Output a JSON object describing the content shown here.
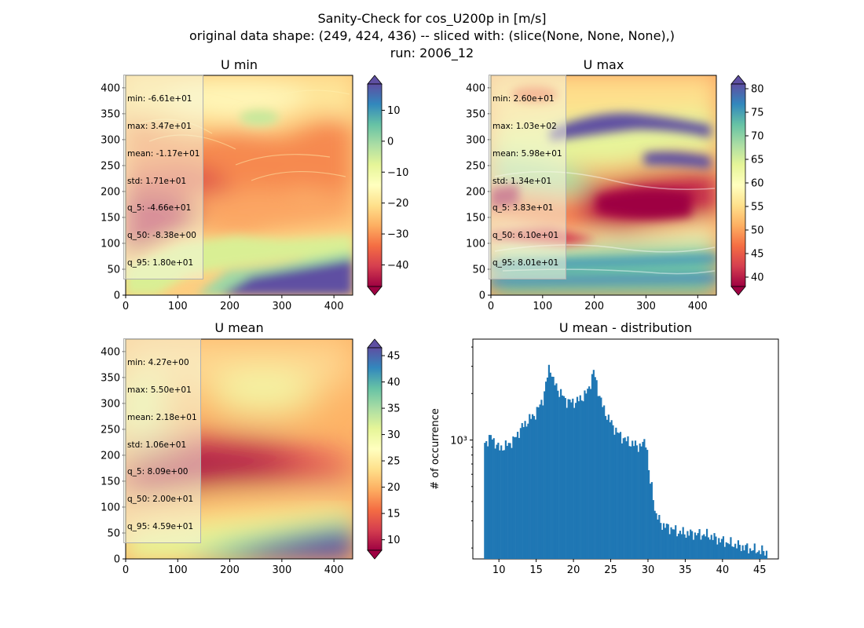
{
  "figure": {
    "title_line1": "Sanity-Check for cos_U200p in [m/s]",
    "title_line2": "original data shape: (249, 424, 436) -- sliced with: (slice(None, None, None),)",
    "title_line3": "run: 2006_12"
  },
  "colormap": "Spectral",
  "panels": {
    "umin": {
      "title": "U min",
      "stats": [
        "min: -6.61e+01",
        "max: 3.47e+01",
        "mean: -1.17e+01",
        "std: 1.71e+01",
        "q_5: -4.66e+01",
        "q_50: -8.38e+00",
        "q_95: 1.80e+01"
      ],
      "colorbar": {
        "min": -47,
        "max": 18.5,
        "ticks": [
          "10",
          "0",
          "−10",
          "−20",
          "−30",
          "−40"
        ]
      }
    },
    "umax": {
      "title": "U max",
      "stats": [
        "min: 2.60e+01",
        "max: 1.03e+02",
        "mean: 5.98e+01",
        "std: 1.34e+01",
        "q_5: 3.83e+01",
        "q_50: 6.10e+01",
        "q_95: 8.01e+01"
      ],
      "colorbar": {
        "min": 38,
        "max": 81,
        "ticks": [
          "80",
          "75",
          "70",
          "65",
          "60",
          "55",
          "50",
          "45",
          "40"
        ]
      }
    },
    "umean": {
      "title": "U mean",
      "stats": [
        "min: 4.27e+00",
        "max: 5.50e+01",
        "mean: 2.18e+01",
        "std: 1.06e+01",
        "q_5: 8.09e+00",
        "q_50: 2.00e+01",
        "q_95: 4.59e+01"
      ],
      "colorbar": {
        "min": 8,
        "max": 46.5,
        "ticks": [
          "45",
          "40",
          "35",
          "30",
          "25",
          "20",
          "15",
          "10"
        ]
      }
    },
    "dist": {
      "title": "U mean - distribution",
      "ylabel": "# of occurrence"
    }
  },
  "map_axes": {
    "x_ticks": [
      "0",
      "100",
      "200",
      "300",
      "400"
    ],
    "y_ticks": [
      "0",
      "50",
      "100",
      "150",
      "200",
      "250",
      "300",
      "350",
      "400"
    ]
  },
  "chart_data": [
    {
      "type": "heatmap",
      "title": "U min",
      "xlim": [
        0,
        436
      ],
      "ylim": [
        0,
        424
      ],
      "colorbar_range": [
        -47,
        18.5
      ],
      "cmap": "Spectral",
      "description_values": {
        "min": -66.1,
        "max": 34.7,
        "mean": -11.7,
        "std": 17.1,
        "q_5": -46.6,
        "q_50": -8.38,
        "q_95": 18.0
      }
    },
    {
      "type": "heatmap",
      "title": "U max",
      "xlim": [
        0,
        436
      ],
      "ylim": [
        0,
        424
      ],
      "colorbar_range": [
        38,
        81
      ],
      "cmap": "Spectral",
      "description_values": {
        "min": 26.0,
        "max": 103,
        "mean": 59.8,
        "std": 13.4,
        "q_5": 38.3,
        "q_50": 61.0,
        "q_95": 80.1
      }
    },
    {
      "type": "heatmap",
      "title": "U mean",
      "xlim": [
        0,
        436
      ],
      "ylim": [
        0,
        424
      ],
      "colorbar_range": [
        8,
        46.5
      ],
      "cmap": "Spectral",
      "description_values": {
        "min": 4.27,
        "max": 55.0,
        "mean": 21.8,
        "std": 10.6,
        "q_5": 8.09,
        "q_50": 20.0,
        "q_95": 45.9
      }
    },
    {
      "type": "bar",
      "title": "U mean - distribution",
      "xlabel": "",
      "ylabel": "# of occurrence",
      "yscale": "log",
      "xlim": [
        6.5,
        47.5
      ],
      "ylim": [
        170,
        4500
      ],
      "x_ticks": [
        10,
        15,
        20,
        25,
        30,
        35,
        40,
        45
      ],
      "y_tick_labels": [
        "10³"
      ],
      "keypoints": [
        [
          8.0,
          950
        ],
        [
          9.0,
          1050
        ],
        [
          10.0,
          880
        ],
        [
          11.0,
          920
        ],
        [
          12.0,
          1000
        ],
        [
          13.0,
          1200
        ],
        [
          14.0,
          1350
        ],
        [
          15.0,
          1500
        ],
        [
          16.0,
          1900
        ],
        [
          16.8,
          3100
        ],
        [
          17.3,
          2400
        ],
        [
          18.0,
          2100
        ],
        [
          19.0,
          1800
        ],
        [
          20.0,
          1750
        ],
        [
          21.0,
          1850
        ],
        [
          22.0,
          2100
        ],
        [
          22.7,
          2800
        ],
        [
          23.2,
          2200
        ],
        [
          24.0,
          1600
        ],
        [
          25.0,
          1300
        ],
        [
          26.0,
          1100
        ],
        [
          27.0,
          1000
        ],
        [
          28.0,
          940
        ],
        [
          29.0,
          910
        ],
        [
          29.8,
          1000
        ],
        [
          30.2,
          540
        ],
        [
          30.6,
          480
        ],
        [
          31.0,
          330
        ],
        [
          32.0,
          280
        ],
        [
          33.0,
          270
        ],
        [
          34.0,
          255
        ],
        [
          35.0,
          250
        ],
        [
          36.0,
          248
        ],
        [
          37.0,
          245
        ],
        [
          38.0,
          243
        ],
        [
          39.0,
          232
        ],
        [
          40.0,
          222
        ],
        [
          41.0,
          215
        ],
        [
          42.0,
          208
        ],
        [
          43.0,
          202
        ],
        [
          44.0,
          196
        ],
        [
          45.0,
          192
        ],
        [
          46.0,
          188
        ]
      ]
    }
  ]
}
